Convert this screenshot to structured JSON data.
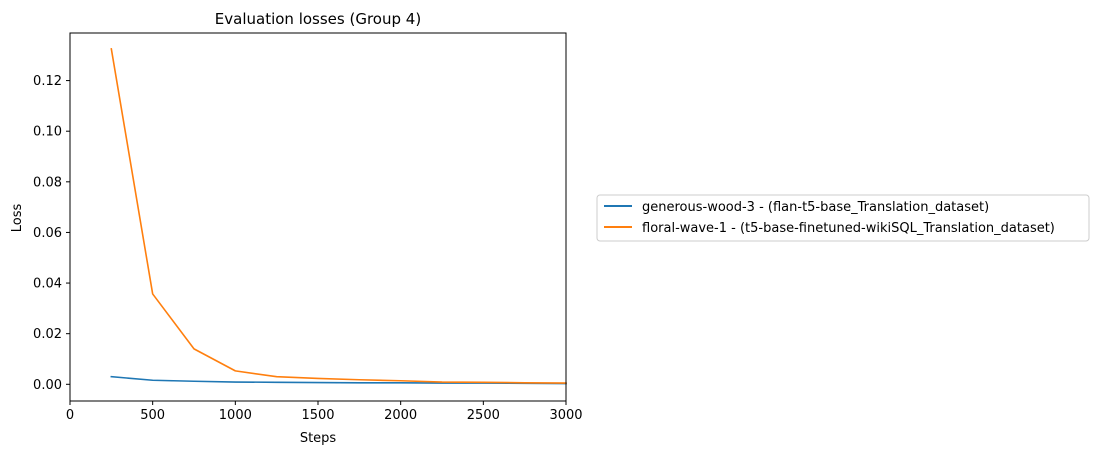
{
  "chart_data": {
    "type": "line",
    "title": "Evaluation losses (Group 4)",
    "xlabel": "Steps",
    "ylabel": "Loss",
    "xlim": [
      0,
      3000
    ],
    "ylim": [
      -0.0066,
      0.1388
    ],
    "xticks": [
      0,
      500,
      1000,
      1500,
      2000,
      2500,
      3000
    ],
    "xtick_labels": [
      "0",
      "500",
      "1000",
      "1500",
      "2000",
      "2500",
      "3000"
    ],
    "yticks": [
      0.0,
      0.02,
      0.04,
      0.06,
      0.08,
      0.1,
      0.12
    ],
    "ytick_labels": [
      "0.00",
      "0.02",
      "0.04",
      "0.06",
      "0.08",
      "0.10",
      "0.12"
    ],
    "grid": false,
    "legend_position": "outside-right",
    "series": [
      {
        "name": "generous-wood-3 - (flan-t5-base_Translation_dataset)",
        "color": "#1f77b4",
        "x": [
          250,
          500,
          750,
          1000,
          1250,
          1500,
          1750,
          2000,
          2250,
          2500,
          2750,
          3000
        ],
        "y": [
          0.003,
          0.0016,
          0.0012,
          0.0009,
          0.0008,
          0.0007,
          0.0006,
          0.0006,
          0.0005,
          0.0005,
          0.0004,
          0.0003
        ]
      },
      {
        "name": "floral-wave-1 - (t5-base-finetuned-wikiSQL_Translation_dataset)",
        "color": "#ff7f0e",
        "x": [
          250,
          500,
          750,
          1000,
          1250,
          1500,
          1750,
          2000,
          2250,
          2500,
          2750,
          3000
        ],
        "y": [
          0.1325,
          0.0357,
          0.014,
          0.0053,
          0.003,
          0.0023,
          0.0018,
          0.0014,
          0.0009,
          0.0008,
          0.0006,
          0.0005
        ]
      }
    ]
  }
}
